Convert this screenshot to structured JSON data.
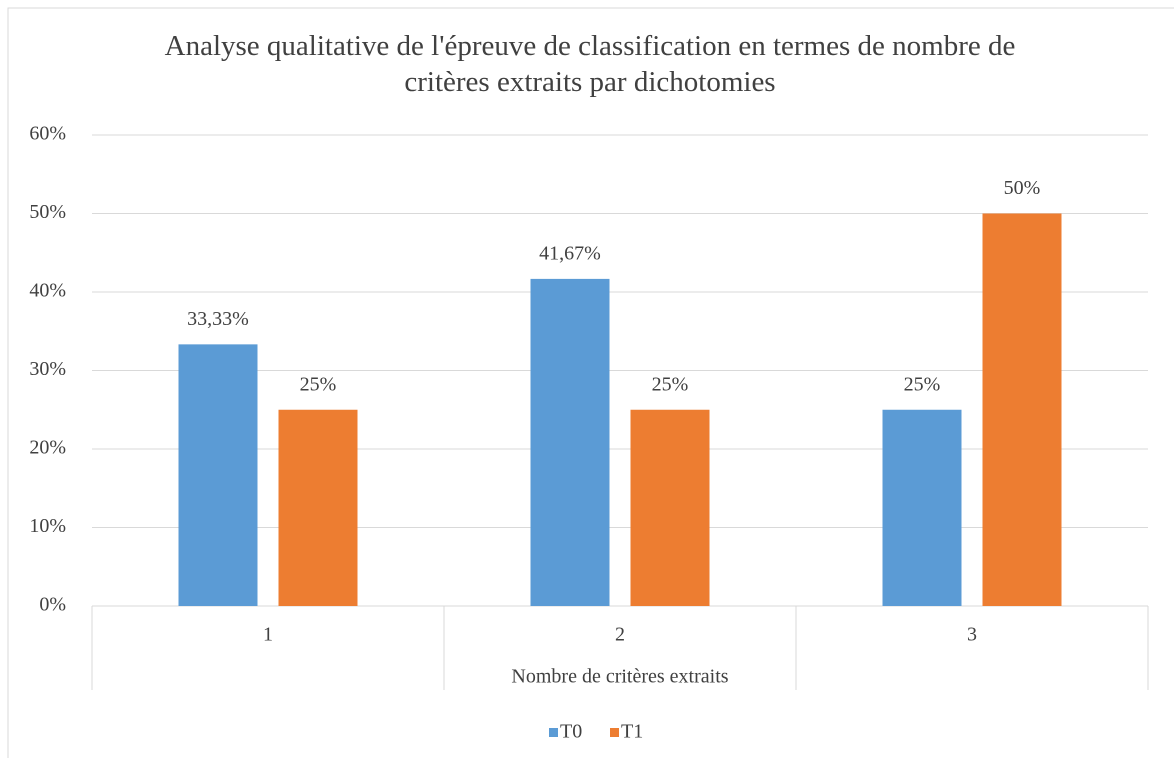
{
  "chart_data": {
    "type": "bar",
    "title": "Analyse qualitative de l'épreuve de classification en termes de nombre de critères extraits par dichotomies",
    "x_label": "Nombre de critères extraits",
    "categories": [
      "1",
      "2",
      "3"
    ],
    "series": [
      {
        "name": "T0",
        "color": "#5b9bd5",
        "values": [
          33.33,
          41.67,
          25
        ],
        "value_labels": [
          "33,33%",
          "41,67%",
          "25%"
        ]
      },
      {
        "name": "T1",
        "color": "#ed7d31",
        "values": [
          25,
          25,
          50
        ],
        "value_labels": [
          "25%",
          "25%",
          "50%"
        ]
      }
    ],
    "ylim": [
      0,
      60
    ],
    "yticks": [
      {
        "value": 0,
        "label": "0%"
      },
      {
        "value": 10,
        "label": "10%"
      },
      {
        "value": 20,
        "label": "20%"
      },
      {
        "value": 30,
        "label": "30%"
      },
      {
        "value": 40,
        "label": "40%"
      },
      {
        "value": 50,
        "label": "50%"
      },
      {
        "value": 60,
        "label": "60%"
      }
    ],
    "grid": true,
    "legend": "bottom"
  }
}
